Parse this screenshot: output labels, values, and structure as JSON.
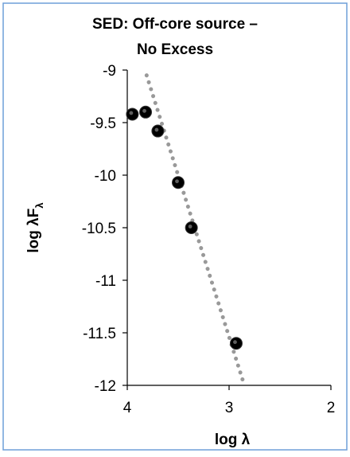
{
  "chart_data": {
    "type": "scatter",
    "title": [
      "SED: Off-core source –",
      "No Excess"
    ],
    "xlabel": "log λ",
    "ylabel": "log λFλ",
    "xlim": [
      4,
      2
    ],
    "ylim": [
      -12,
      -9
    ],
    "x_ticks": [
      "4",
      "3",
      "2"
    ],
    "y_ticks": [
      "-9",
      "-9.5",
      "-10",
      "-10.5",
      "-11",
      "-11.5",
      "-12"
    ],
    "grid": false,
    "legend": "none",
    "frame_color": "#6f9fd8",
    "marker_color": "#000000",
    "fit_line_color": "#999999",
    "series": [
      {
        "kind": "points",
        "x": [
          3.95,
          3.82,
          3.7,
          3.5,
          3.37,
          2.93
        ],
        "y": [
          -9.42,
          -9.4,
          -9.58,
          -10.07,
          -10.5,
          -11.6
        ]
      },
      {
        "kind": "dotted-line",
        "x": [
          3.81,
          2.85
        ],
        "y": [
          -9.05,
          -12.0
        ]
      }
    ]
  }
}
